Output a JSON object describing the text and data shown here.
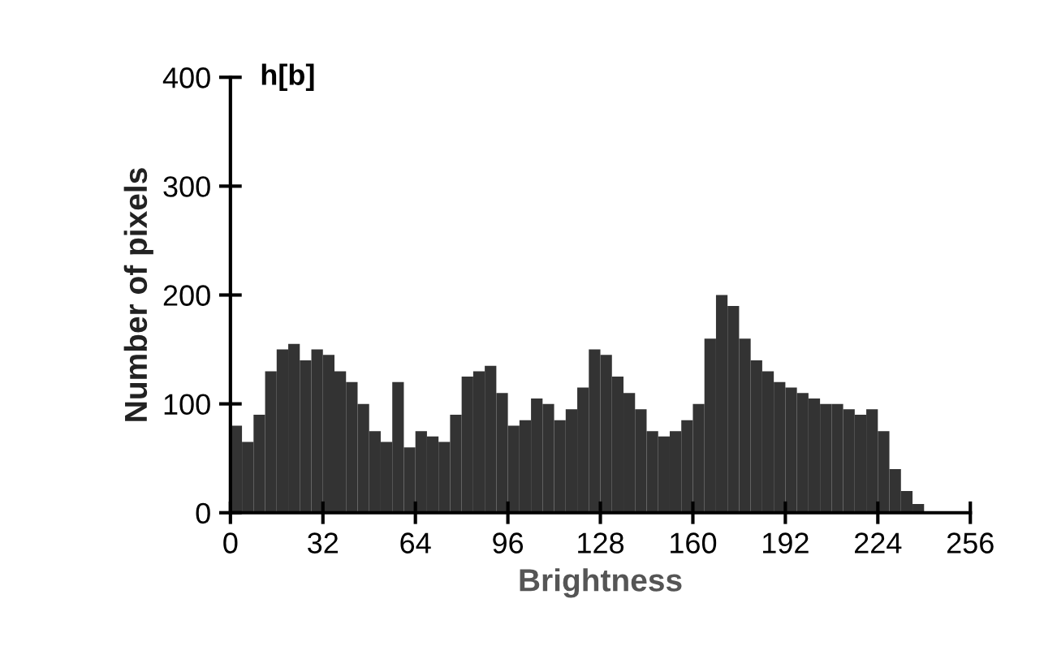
{
  "chart_data": {
    "type": "histogram",
    "title": "h[b]",
    "xlabel": "Brightness",
    "ylabel": "Number of pixels",
    "bins": [
      0,
      4,
      8,
      12,
      16,
      20,
      24,
      28,
      32,
      36,
      40,
      44,
      48,
      52,
      56,
      60,
      64,
      68,
      72,
      76,
      80,
      84,
      88,
      92,
      96,
      100,
      104,
      108,
      112,
      116,
      120,
      124,
      128,
      132,
      136,
      140,
      144,
      148,
      152,
      156,
      160,
      164,
      168,
      172,
      176,
      180,
      184,
      188,
      192,
      196,
      200,
      204,
      208,
      212,
      216,
      220,
      224,
      228,
      232,
      236,
      240
    ],
    "values": [
      80,
      65,
      90,
      130,
      150,
      155,
      140,
      150,
      145,
      130,
      120,
      100,
      75,
      65,
      120,
      60,
      75,
      70,
      65,
      90,
      125,
      130,
      135,
      110,
      80,
      85,
      105,
      100,
      85,
      95,
      115,
      150,
      145,
      125,
      110,
      95,
      75,
      70,
      75,
      85,
      100,
      160,
      200,
      190,
      160,
      140,
      130,
      120,
      115,
      110,
      105,
      100,
      100,
      95,
      90,
      95,
      75,
      40,
      20,
      8
    ],
    "color": "#333333",
    "xlim": [
      0,
      256
    ],
    "xticks": [
      0,
      32,
      64,
      96,
      128,
      160,
      192,
      224,
      256
    ],
    "ylim": [
      0,
      400
    ],
    "yticks": [
      0,
      100,
      200,
      300,
      400
    ],
    "grid": false
  }
}
